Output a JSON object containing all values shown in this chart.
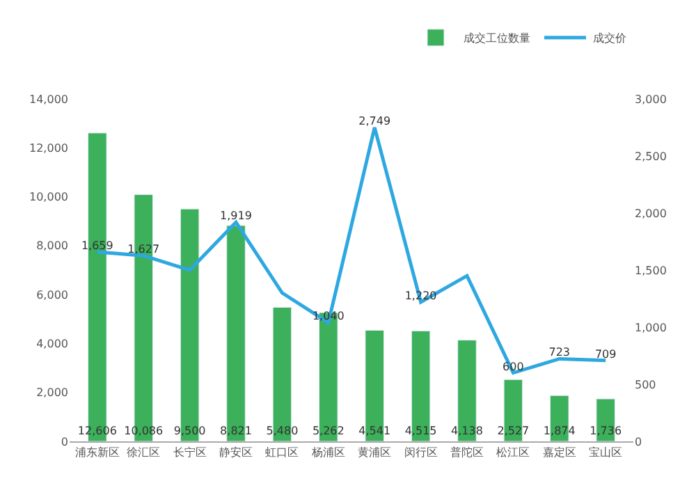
{
  "chart_data": {
    "type": "bar",
    "categories": [
      "浦东新区",
      "徐汇区",
      "长宁区",
      "静安区",
      "虹口区",
      "杨浦区",
      "黄浦区",
      "闵行区",
      "普陀区",
      "松江区",
      "嘉定区",
      "宝山区"
    ],
    "series": [
      {
        "name": "成交工位数量",
        "color": "#3cb05a",
        "values": [
          12606,
          10086,
          9500,
          8821,
          5480,
          5262,
          4541,
          4515,
          4138,
          2527,
          1874,
          1736
        ],
        "value_labels": [
          "12,606",
          "10,086",
          "9,500",
          "8,821",
          "5,480",
          "5,262",
          "4,541",
          "4,515",
          "4,138",
          "2,527",
          "1,874",
          "1,736"
        ]
      },
      {
        "name": "成交价",
        "type": "line",
        "axis": "y2",
        "color": "#2ea8e0",
        "values": [
          1659,
          1627,
          1500,
          1919,
          1300,
          1040,
          2749,
          1220,
          1450,
          600,
          723,
          709
        ],
        "value_labels": [
          "1,659",
          "1,627",
          null,
          "1,919",
          null,
          "1,040",
          "2,749",
          "1,220",
          null,
          "600",
          "723",
          "709"
        ]
      }
    ],
    "ylim": [
      0,
      14000
    ],
    "yticks": [
      {
        "value": 0,
        "label": "0"
      },
      {
        "value": 2000,
        "label": "2,000"
      },
      {
        "value": 4000,
        "label": "4,000"
      },
      {
        "value": 6000,
        "label": "6,000"
      },
      {
        "value": 8000,
        "label": "8,000"
      },
      {
        "value": 10000,
        "label": "10,000"
      },
      {
        "value": 12000,
        "label": "12,000"
      },
      {
        "value": 14000,
        "label": "14,000"
      }
    ],
    "y2lim": [
      0,
      3000
    ],
    "y2ticks": [
      {
        "value": 0,
        "label": "0"
      },
      {
        "value": 500,
        "label": "500"
      },
      {
        "value": 1000,
        "label": "1,000"
      },
      {
        "value": 1500,
        "label": "1,500"
      },
      {
        "value": 2000,
        "label": "2,000"
      },
      {
        "value": 2500,
        "label": "2,500"
      },
      {
        "value": 3000,
        "label": "3,000"
      }
    ],
    "legend": "top right",
    "marker": "none"
  }
}
